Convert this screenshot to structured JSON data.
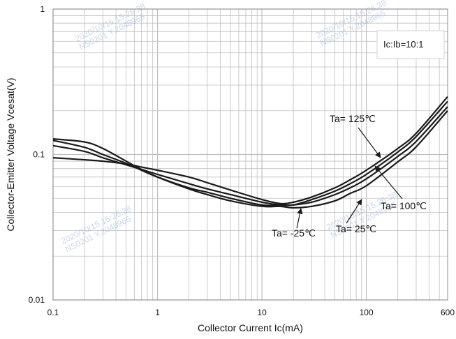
{
  "chart_data": {
    "type": "line",
    "x_scale": "log",
    "y_scale": "log",
    "xlabel": "Collector Current   Ic(mA)",
    "ylabel": "Collector-Emitter Voltage   Vcesat(V)",
    "xlim": [
      0.1,
      600
    ],
    "ylim": [
      0.01,
      1
    ],
    "x_ticks": [
      "0.1",
      "1",
      "10",
      "100",
      "600"
    ],
    "y_ticks": [
      "1",
      "0.1",
      "0.01"
    ],
    "grid": true,
    "annotation_box": "Ic:Ib=10:1",
    "series": [
      {
        "name": "Ta= 125℃",
        "x": [
          0.1,
          0.2,
          0.3,
          0.5,
          0.7,
          1,
          2,
          3,
          5,
          10,
          15,
          20,
          30,
          50,
          70,
          100,
          200,
          300,
          600
        ],
        "y": [
          0.095,
          0.092,
          0.09,
          0.086,
          0.082,
          0.078,
          0.07,
          0.064,
          0.057,
          0.049,
          0.046,
          0.047,
          0.051,
          0.059,
          0.067,
          0.078,
          0.11,
          0.14,
          0.25
        ]
      },
      {
        "name": "Ta= 100℃",
        "x": [
          0.1,
          0.2,
          0.3,
          0.5,
          0.7,
          1,
          2,
          3,
          5,
          10,
          15,
          20,
          30,
          50,
          70,
          100,
          200,
          300,
          600
        ],
        "y": [
          0.115,
          0.105,
          0.095,
          0.085,
          0.079,
          0.073,
          0.063,
          0.058,
          0.053,
          0.047,
          0.045,
          0.045,
          0.049,
          0.056,
          0.063,
          0.073,
          0.104,
          0.133,
          0.232
        ]
      },
      {
        "name": "Ta= 25℃",
        "x": [
          0.1,
          0.2,
          0.3,
          0.5,
          0.7,
          1,
          2,
          3,
          5,
          10,
          15,
          20,
          30,
          50,
          70,
          100,
          200,
          300,
          600
        ],
        "y": [
          0.125,
          0.112,
          0.1,
          0.087,
          0.078,
          0.07,
          0.059,
          0.055,
          0.05,
          0.045,
          0.045,
          0.045,
          0.047,
          0.053,
          0.059,
          0.068,
          0.097,
          0.123,
          0.213
        ]
      },
      {
        "name": "Ta= -25℃",
        "x": [
          0.1,
          0.2,
          0.3,
          0.5,
          0.7,
          1,
          2,
          3,
          5,
          10,
          15,
          20,
          30,
          50,
          70,
          100,
          200,
          300,
          600
        ],
        "y": [
          0.128,
          0.122,
          0.11,
          0.09,
          0.079,
          0.07,
          0.058,
          0.053,
          0.048,
          0.044,
          0.044,
          0.043,
          0.044,
          0.048,
          0.054,
          0.061,
          0.089,
          0.113,
          0.2
        ]
      }
    ],
    "series_labels": [
      {
        "text": "Ta= 125℃",
        "series": 0
      },
      {
        "text": "Ta= 100℃",
        "series": 1
      },
      {
        "text": "Ta= 25℃",
        "series": 2
      },
      {
        "text": "Ta= -25℃",
        "series": 3
      }
    ]
  },
  "watermark": {
    "date": "2020/10/15  15:26:38",
    "id": "NS0201 Y.2048965"
  },
  "colors": {
    "line": "#1a1a1a",
    "grid": "#bfbfbf",
    "box_border": "#d0d0d0",
    "watermark": "#9fb3d9"
  }
}
